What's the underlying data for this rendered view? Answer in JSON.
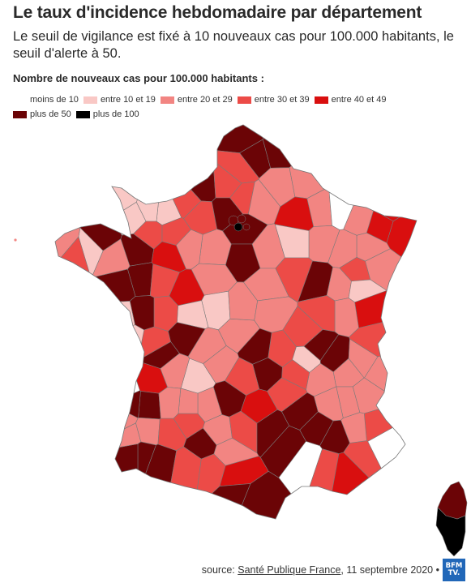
{
  "header": {
    "title": "Le taux d'incidence hebdomadaire par département",
    "subtitle": "Le seuil de vigilance est fixé à 10 nouveaux cas pour 100.000 habitants, le seuil d'alerte à 50."
  },
  "legend": {
    "title": "Nombre de nouveaux cas pour 100.000 habitants :",
    "items": [
      {
        "label": "moins de 10",
        "color": "#ffffff"
      },
      {
        "label": "entre 10 et 19",
        "color": "#f9c8c5"
      },
      {
        "label": "entre 20 et 29",
        "color": "#f28582"
      },
      {
        "label": "entre 30 et 39",
        "color": "#ec4b47"
      },
      {
        "label": "entre 40 et 49",
        "color": "#d90f0f"
      },
      {
        "label": "plus de 50",
        "color": "#6b0406"
      },
      {
        "label": "plus de 100",
        "color": "#000000"
      }
    ]
  },
  "map": {
    "stroke_color": "#7a7a7a"
  },
  "footer": {
    "source_prefix": "source: ",
    "source_link": "Santé Publique France",
    "source_suffix": ", 11 septembre 2020 •",
    "logo_line1": "BFM",
    "logo_line2": "TV."
  }
}
